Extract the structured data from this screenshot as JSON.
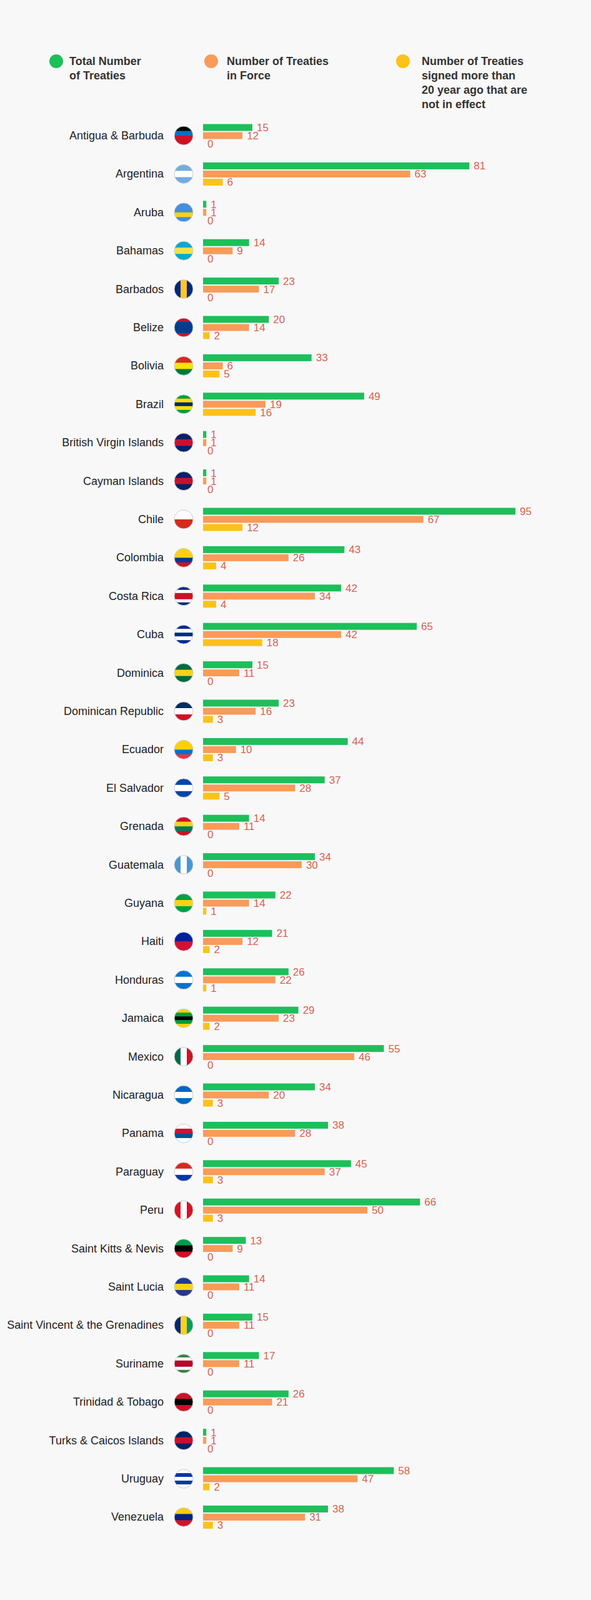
{
  "chart_data": {
    "type": "bar",
    "orientation": "horizontal",
    "data_labels": true,
    "tick_labels": "y",
    "legend": "top",
    "categories": [
      "Antigua & Barbuda",
      "Argentina",
      "Aruba",
      "Bahamas",
      "Barbados",
      "Belize",
      "Bolivia",
      "Brazil",
      "British Virgin Islands",
      "Cayman Islands",
      "Chile",
      "Colombia",
      "Costa Rica",
      "Cuba",
      "Dominica",
      "Dominican Republic",
      "Ecuador",
      "El Salvador",
      "Grenada",
      "Guatemala",
      "Guyana",
      "Haiti",
      "Honduras",
      "Jamaica",
      "Mexico",
      "Nicaragua",
      "Panama",
      "Paraguay",
      "Peru",
      "Saint Kitts & Nevis",
      "Saint Lucia",
      "Saint Vincent & the Grenadines",
      "Suriname",
      "Trinidad & Tobago",
      "Turks & Caicos Islands",
      "Uruguay",
      "Venezuela"
    ],
    "series": [
      {
        "name": "Total Number of Treaties",
        "color": "#1dbf5a",
        "values": [
          15,
          81,
          1,
          14,
          23,
          20,
          33,
          49,
          1,
          1,
          95,
          43,
          42,
          65,
          15,
          23,
          44,
          37,
          14,
          34,
          22,
          21,
          26,
          29,
          55,
          34,
          38,
          45,
          66,
          13,
          14,
          15,
          17,
          26,
          1,
          58,
          38
        ]
      },
      {
        "name": "Number of Treaties in Force",
        "color": "#f99b59",
        "values": [
          12,
          63,
          1,
          9,
          17,
          14,
          6,
          19,
          1,
          1,
          67,
          26,
          34,
          42,
          11,
          16,
          10,
          28,
          11,
          30,
          14,
          12,
          22,
          23,
          46,
          20,
          28,
          37,
          50,
          9,
          11,
          11,
          11,
          21,
          1,
          47,
          31
        ]
      },
      {
        "name": "Number of Treaties signed more than 20 year ago that are not in effect",
        "color": "#fbc21a",
        "values": [
          0,
          6,
          0,
          0,
          0,
          2,
          5,
          16,
          0,
          0,
          12,
          4,
          4,
          18,
          0,
          3,
          3,
          5,
          0,
          0,
          1,
          2,
          1,
          2,
          0,
          3,
          0,
          3,
          3,
          0,
          0,
          0,
          0,
          0,
          0,
          2,
          3
        ]
      }
    ]
  }
}
